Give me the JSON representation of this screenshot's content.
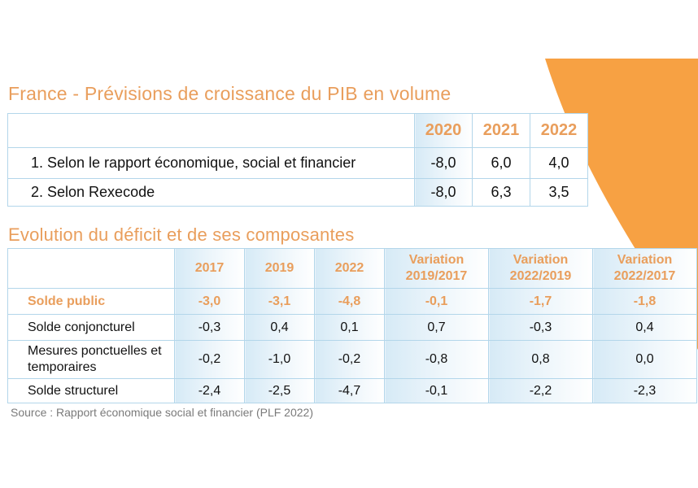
{
  "colors": {
    "accent": "#E99E5C",
    "border": "#B3D6EA",
    "tint": "#D6EAF6",
    "decor": "#F7A143"
  },
  "table1": {
    "title": "France - Prévisions de croissance du PIB en volume",
    "columns": [
      "2020",
      "2021",
      "2022"
    ],
    "rows": [
      {
        "label": "1. Selon le rapport économique, social et financier",
        "values": [
          "-8,0",
          "6,0",
          "4,0"
        ]
      },
      {
        "label": "2. Selon Rexecode",
        "values": [
          "-8,0",
          "6,3",
          "3,5"
        ]
      }
    ]
  },
  "table2": {
    "title": "Evolution du déficit et de ses composantes",
    "columns": [
      "2017",
      "2019",
      "2022",
      "Variation 2019/2017",
      "Variation 2022/2019",
      "Variation 2022/2017"
    ],
    "rows": [
      {
        "label": "Solde public",
        "values": [
          "-3,0",
          "-3,1",
          "-4,8",
          "-0,1",
          "-1,7",
          "-1,8"
        ]
      },
      {
        "label": "Solde conjoncturel",
        "values": [
          "-0,3",
          "0,4",
          "0,1",
          "0,7",
          "-0,3",
          "0,4"
        ]
      },
      {
        "label": "Mesures ponctuelles et temporaires",
        "values": [
          "-0,2",
          "-1,0",
          "-0,2",
          "-0,8",
          "0,8",
          "0,0"
        ]
      },
      {
        "label": "Solde structurel",
        "values": [
          "-2,4",
          "-2,5",
          "-4,7",
          "-0,1",
          "-2,2",
          "-2,3"
        ]
      }
    ]
  },
  "source": "Source : Rapport économique social et financier (PLF 2022)"
}
